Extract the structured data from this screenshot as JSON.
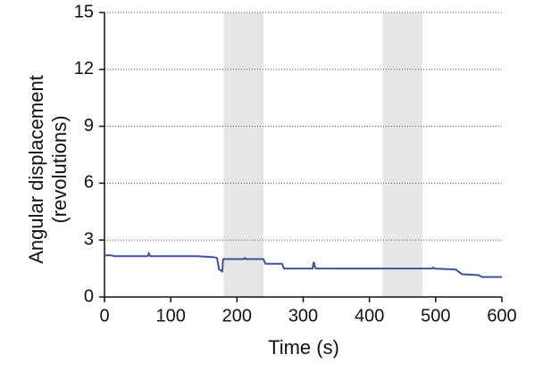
{
  "chart_data": {
    "type": "line",
    "xlabel": "Time (s)",
    "ylabel": [
      "Angular displacement",
      "(revolutions)"
    ],
    "x": [
      0,
      10,
      15,
      65,
      67,
      69,
      140,
      165,
      170,
      173,
      178,
      179,
      210,
      212,
      214,
      240,
      243,
      268,
      271,
      314,
      316,
      318,
      320,
      494,
      496,
      498,
      530,
      540,
      565,
      570,
      600
    ],
    "series": [
      {
        "color": "#3d52a1",
        "values": [
          2.2,
          2.2,
          2.15,
          2.15,
          2.3,
          2.15,
          2.15,
          2.1,
          2.05,
          1.45,
          1.35,
          2.0,
          2.0,
          2.05,
          2.0,
          2.0,
          1.75,
          1.75,
          1.5,
          1.5,
          1.85,
          1.55,
          1.5,
          1.5,
          1.55,
          1.5,
          1.45,
          1.2,
          1.15,
          1.05,
          1.05
        ]
      }
    ],
    "shaded_regions": [
      [
        180,
        240
      ],
      [
        420,
        480
      ]
    ],
    "shade_color": "#e6e6e6",
    "xlim": [
      0,
      600
    ],
    "xticks": [
      0,
      100,
      200,
      300,
      400,
      500,
      600
    ],
    "ylim": [
      0,
      15
    ],
    "yticks": [
      0,
      3,
      6,
      9,
      12,
      15
    ],
    "grid": true
  }
}
